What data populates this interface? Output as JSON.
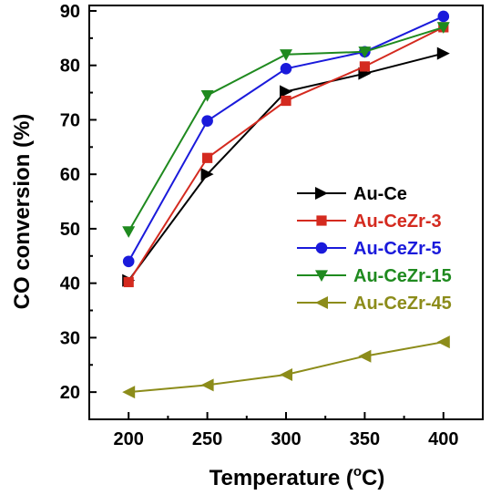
{
  "chart_data": {
    "type": "line",
    "title": "",
    "xlabel": "Temperature (",
    "xlabel_degree": "o",
    "xlabel_unit": "C)",
    "ylabel": "CO conversion (%)",
    "x": [
      200,
      250,
      300,
      350,
      400
    ],
    "xlim": [
      175,
      425
    ],
    "ylim": [
      15,
      91
    ],
    "xticks": [
      200,
      250,
      300,
      350,
      400
    ],
    "yticks": [
      20,
      30,
      40,
      50,
      60,
      70,
      80,
      90
    ],
    "grid": false,
    "legend_position": "right",
    "series": [
      {
        "name": "Au-Ce",
        "color": "#000000",
        "marker": "triangle-right",
        "values": [
          40.5,
          60.0,
          75.2,
          78.5,
          82.2
        ]
      },
      {
        "name": "Au-CeZr-3",
        "color": "#d42a1f",
        "marker": "square",
        "values": [
          40.2,
          63.0,
          73.5,
          79.8,
          87.0
        ]
      },
      {
        "name": "Au-CeZr-5",
        "color": "#1a1adb",
        "marker": "circle",
        "values": [
          44.0,
          69.8,
          79.4,
          82.5,
          89.0
        ]
      },
      {
        "name": "Au-CeZr-15",
        "color": "#1f8a1f",
        "marker": "triangle-down",
        "values": [
          49.5,
          74.5,
          82.0,
          82.5,
          87.0
        ]
      },
      {
        "name": "Au-CeZr-45",
        "color": "#8c8c1a",
        "marker": "triangle-left",
        "values": [
          20.0,
          21.3,
          23.2,
          26.6,
          29.2
        ]
      }
    ]
  }
}
